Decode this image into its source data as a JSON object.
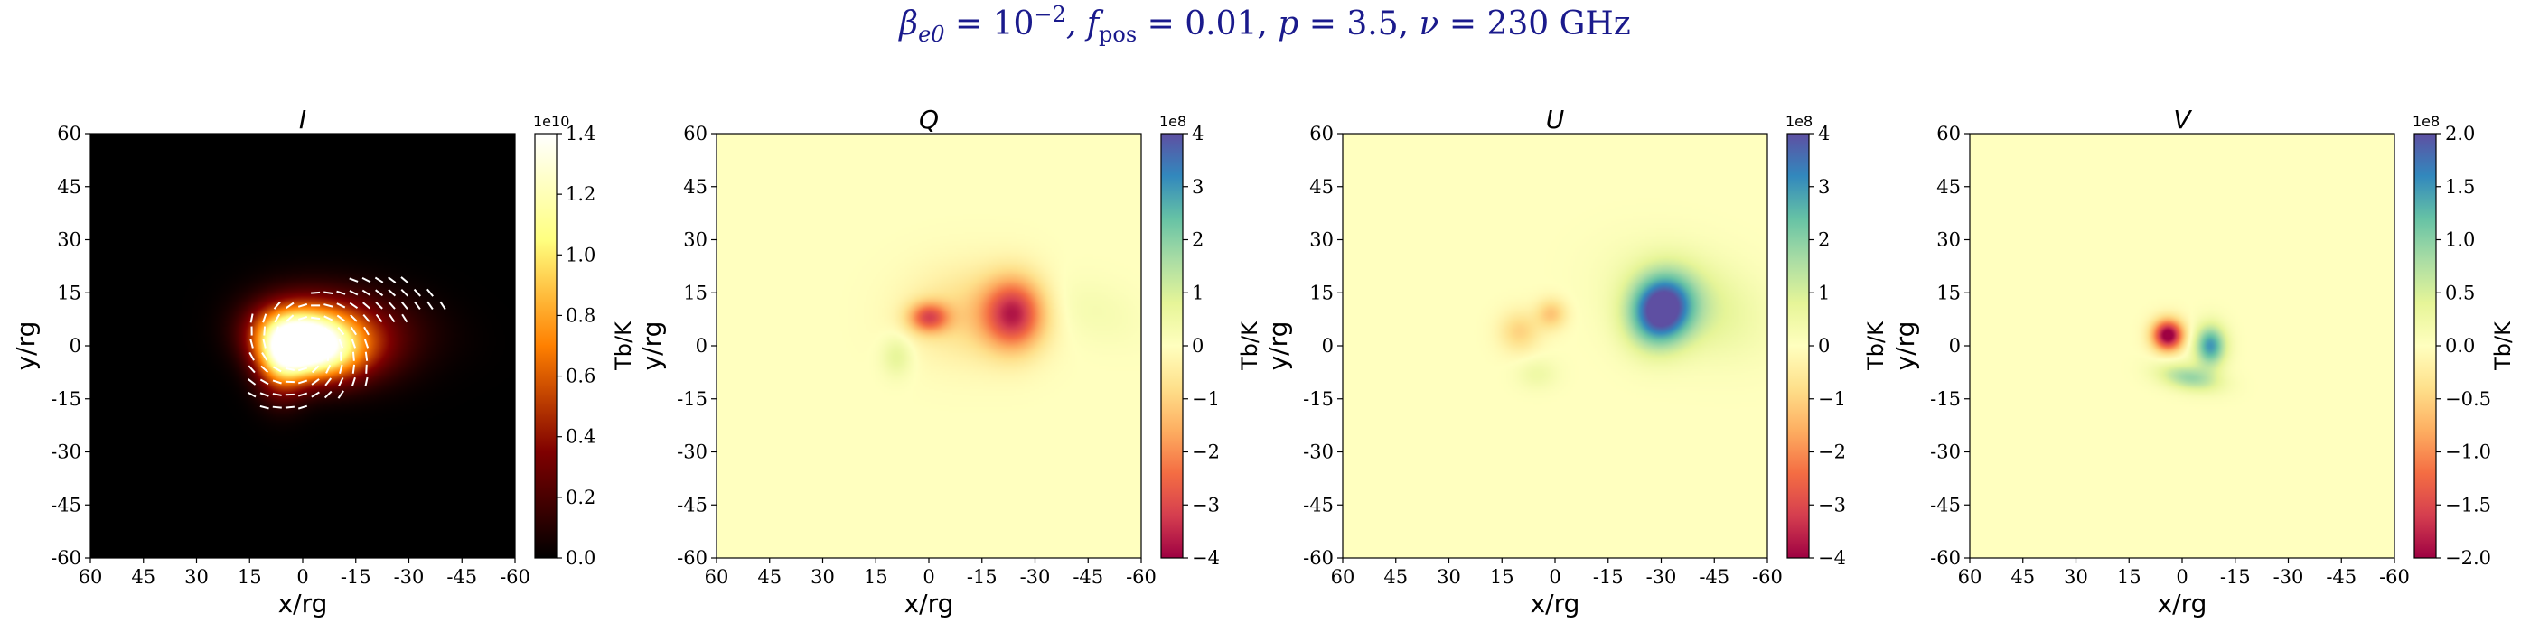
{
  "figure": {
    "title_beta_symbol": "β",
    "title_beta_sub": "e0",
    "title_beta_rest": " = 10",
    "title_beta_exp": "−2",
    "title_f_symbol": ", f",
    "title_f_sub": "pos",
    "title_f_rest": " = 0.01, ",
    "title_p_symbol": "p",
    "title_p_rest": " = 3.5, ",
    "title_nu_symbol": "ν",
    "title_nu_rest": " = 230 GHz",
    "title_color": "#1a1a8c"
  },
  "chart_data": [
    {
      "type": "heatmap",
      "title": "I",
      "xlabel": "x/rg",
      "ylabel": "y/rg",
      "colorbar_label": "Tb/K",
      "colorbar_offset": "1e10",
      "colormap": "afmhot",
      "xlim": [
        60,
        -60
      ],
      "ylim": [
        -60,
        60
      ],
      "xticks": [
        "60",
        "45",
        "30",
        "15",
        "0",
        "-15",
        "-30",
        "-45",
        "-60"
      ],
      "yticks": [
        "60",
        "45",
        "30",
        "15",
        "0",
        "-15",
        "-30",
        "-45",
        "-60"
      ],
      "colorbar_ticks": [
        "1.4",
        "1.2",
        "1.0",
        "0.8",
        "0.6",
        "0.4",
        "0.2",
        "0.0"
      ],
      "vmin": 0,
      "vmax": 1.4,
      "polarization_ticks": true,
      "blobs": [
        {
          "x": 0,
          "y": 0,
          "sx": 9,
          "sy": 6,
          "amp": 1.35,
          "angle": 15
        },
        {
          "x": -8,
          "y": 3,
          "sx": 12,
          "sy": 7,
          "amp": 0.7,
          "angle": 15
        },
        {
          "x": 6,
          "y": -5,
          "sx": 5,
          "sy": 7,
          "amp": 0.6,
          "angle": 0
        },
        {
          "x": -22,
          "y": 8,
          "sx": 14,
          "sy": 7,
          "amp": 0.12,
          "angle": 15
        }
      ]
    },
    {
      "type": "heatmap",
      "title": "Q",
      "xlabel": "x/rg",
      "ylabel": "y/rg",
      "colorbar_label": "Tb/K",
      "colorbar_offset": "1e8",
      "colormap": "Spectral",
      "xlim": [
        60,
        -60
      ],
      "ylim": [
        -60,
        60
      ],
      "xticks": [
        "60",
        "45",
        "30",
        "15",
        "0",
        "-15",
        "-30",
        "-45",
        "-60"
      ],
      "yticks": [
        "60",
        "45",
        "30",
        "15",
        "0",
        "-15",
        "-30",
        "-45",
        "-60"
      ],
      "colorbar_ticks": [
        "4",
        "3",
        "2",
        "1",
        "0",
        "−1",
        "−2",
        "−3",
        "−4"
      ],
      "vmin": -4,
      "vmax": 4,
      "polarization_ticks": false,
      "blobs": [
        {
          "x": 0,
          "y": 8,
          "sx": 4,
          "sy": 3,
          "amp": -2.6,
          "angle": 0
        },
        {
          "x": -24,
          "y": 9,
          "sx": 6,
          "sy": 7,
          "amp": -3.2,
          "angle": 0
        },
        {
          "x": -12,
          "y": 9,
          "sx": 12,
          "sy": 9,
          "amp": -0.9,
          "angle": 0
        },
        {
          "x": 9,
          "y": -3,
          "sx": 3,
          "sy": 4,
          "amp": 0.8,
          "angle": 0
        },
        {
          "x": -46,
          "y": 10,
          "sx": 10,
          "sy": 6,
          "amp": 0.3,
          "angle": 20
        }
      ]
    },
    {
      "type": "heatmap",
      "title": "U",
      "xlabel": "x/rg",
      "ylabel": "y/rg",
      "colorbar_label": "Tb/K",
      "colorbar_offset": "1e8",
      "colormap": "Spectral",
      "xlim": [
        60,
        -60
      ],
      "ylim": [
        -60,
        60
      ],
      "xticks": [
        "60",
        "45",
        "30",
        "15",
        "0",
        "-15",
        "-30",
        "-45",
        "-60"
      ],
      "yticks": [
        "60",
        "45",
        "30",
        "15",
        "0",
        "-15",
        "-30",
        "-45",
        "-60"
      ],
      "colorbar_ticks": [
        "4",
        "3",
        "2",
        "1",
        "0",
        "−1",
        "−2",
        "−3",
        "−4"
      ],
      "vmin": -4,
      "vmax": 4,
      "polarization_ticks": false,
      "blobs": [
        {
          "x": -30,
          "y": 10,
          "sx": 6,
          "sy": 7,
          "amp": 4.2,
          "angle": 20
        },
        {
          "x": -38,
          "y": 12,
          "sx": 14,
          "sy": 9,
          "amp": 1.0,
          "angle": 20
        },
        {
          "x": 10,
          "y": 4,
          "sx": 4,
          "sy": 4,
          "amp": -1.0,
          "angle": 0
        },
        {
          "x": 1,
          "y": 9,
          "sx": 3,
          "sy": 3,
          "amp": -1.2,
          "angle": 0
        },
        {
          "x": 5,
          "y": -8,
          "sx": 4,
          "sy": 3,
          "amp": 0.5,
          "angle": 0
        }
      ]
    },
    {
      "type": "heatmap",
      "title": "V",
      "xlabel": "x/rg",
      "ylabel": "y/rg",
      "colorbar_label": "Tb/K",
      "colorbar_offset": "1e8",
      "colormap": "Spectral",
      "xlim": [
        60,
        -60
      ],
      "ylim": [
        -60,
        60
      ],
      "xticks": [
        "60",
        "45",
        "30",
        "15",
        "0",
        "-15",
        "-30",
        "-45",
        "-60"
      ],
      "yticks": [
        "60",
        "45",
        "30",
        "15",
        "0",
        "-15",
        "-30",
        "-45",
        "-60"
      ],
      "colorbar_ticks": [
        "2.0",
        "1.5",
        "1.0",
        "0.5",
        "0.0",
        "−0.5",
        "−1.0",
        "−1.5",
        "−2.0"
      ],
      "vmin": -2,
      "vmax": 2,
      "polarization_ticks": false,
      "blobs": [
        {
          "x": 4,
          "y": 3,
          "sx": 3,
          "sy": 3,
          "amp": -2.2,
          "angle": 0
        },
        {
          "x": -8,
          "y": 0,
          "sx": 3,
          "sy": 4,
          "amp": 1.5,
          "angle": 0
        },
        {
          "x": -2,
          "y": -9,
          "sx": 6,
          "sy": 2.5,
          "amp": 0.9,
          "angle": 10
        }
      ]
    }
  ]
}
